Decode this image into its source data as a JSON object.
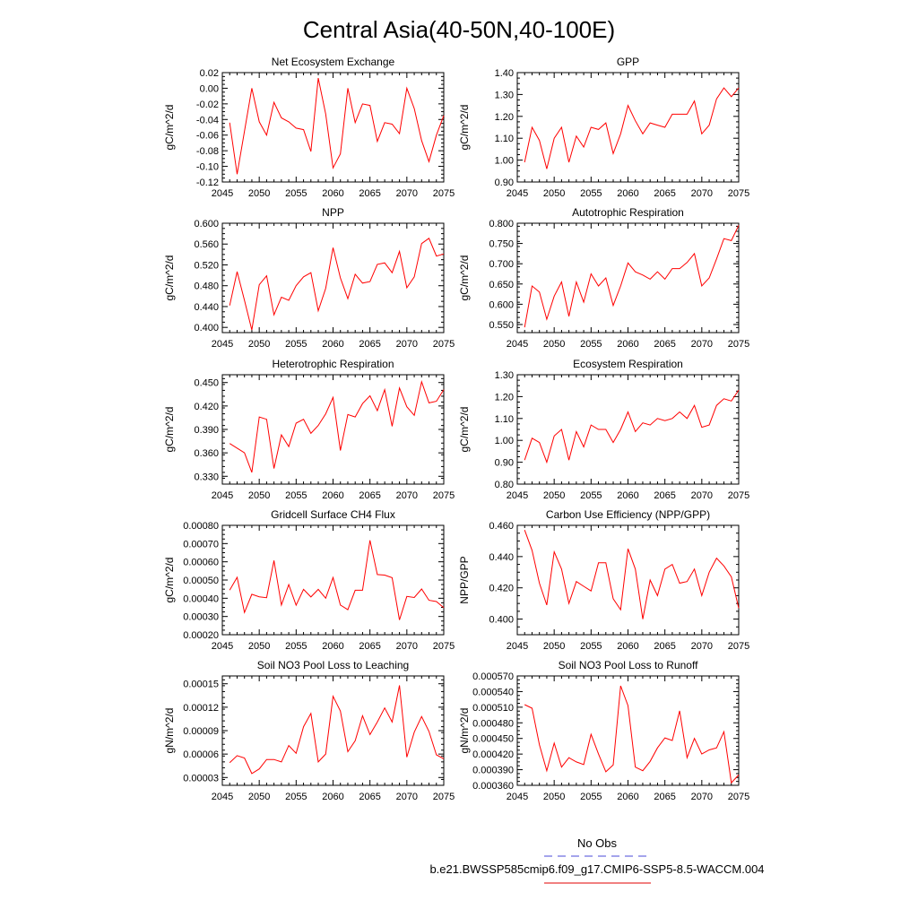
{
  "figure": {
    "title": "Central Asia(40-50N,40-100E)",
    "legend": {
      "obs_label": "No Obs",
      "obs_color": "#4a4ad8",
      "model_label": "b.e21.BWSSP585cmip6.f09_g17.CMIP6-SSP5-8.5-WACCM.004",
      "model_color": "#e00000"
    },
    "line_color": "#ff0000"
  },
  "chart_data": [
    {
      "type": "line",
      "title": "Net Ecosystem Exchange",
      "ylabel": "gC/m^2/d",
      "xlim": [
        2045,
        2075
      ],
      "ylim": [
        -0.12,
        0.02
      ],
      "xticks": [
        "2045",
        "2050",
        "2055",
        "2060",
        "2065",
        "2070",
        "2075"
      ],
      "yticks": [
        "0.02",
        "0.00",
        "-0.02",
        "-0.04",
        "-0.06",
        "-0.08",
        "-0.10",
        "-0.12"
      ],
      "x": [
        2046,
        2047,
        2048,
        2049,
        2050,
        2051,
        2052,
        2053,
        2054,
        2055,
        2056,
        2057,
        2058,
        2059,
        2060,
        2061,
        2062,
        2063,
        2064,
        2065,
        2066,
        2067,
        2068,
        2069,
        2070,
        2071,
        2072,
        2073,
        2074,
        2075
      ],
      "series": [
        {
          "values": [
            -0.044,
            -0.11,
            -0.055,
            0.0,
            -0.043,
            -0.06,
            -0.018,
            -0.038,
            -0.043,
            -0.051,
            -0.053,
            -0.081,
            0.013,
            -0.033,
            -0.102,
            -0.084,
            0.0,
            -0.044,
            -0.02,
            -0.022,
            -0.068,
            -0.044,
            -0.046,
            -0.058,
            0.0,
            -0.026,
            -0.067,
            -0.094,
            -0.06,
            -0.035
          ]
        }
      ]
    },
    {
      "type": "line",
      "title": "GPP",
      "ylabel": "gC/m^2/d",
      "xlim": [
        2045,
        2075
      ],
      "ylim": [
        0.9,
        1.4
      ],
      "xticks": [
        "2045",
        "2050",
        "2055",
        "2060",
        "2065",
        "2070",
        "2075"
      ],
      "yticks": [
        "1.40",
        "1.30",
        "1.20",
        "1.10",
        "1.00",
        "0.90"
      ],
      "x": [
        2046,
        2047,
        2048,
        2049,
        2050,
        2051,
        2052,
        2053,
        2054,
        2055,
        2056,
        2057,
        2058,
        2059,
        2060,
        2061,
        2062,
        2063,
        2064,
        2065,
        2066,
        2067,
        2068,
        2069,
        2070,
        2071,
        2072,
        2073,
        2074,
        2075
      ],
      "series": [
        {
          "values": [
            0.99,
            1.15,
            1.09,
            0.96,
            1.1,
            1.15,
            0.99,
            1.11,
            1.06,
            1.15,
            1.14,
            1.17,
            1.03,
            1.12,
            1.25,
            1.18,
            1.12,
            1.17,
            1.16,
            1.15,
            1.21,
            1.21,
            1.21,
            1.27,
            1.12,
            1.16,
            1.28,
            1.33,
            1.29,
            1.33
          ]
        }
      ]
    },
    {
      "type": "line",
      "title": "NPP",
      "ylabel": "gC/m^2/d",
      "xlim": [
        2045,
        2075
      ],
      "ylim": [
        0.39,
        0.6
      ],
      "xticks": [
        "2045",
        "2050",
        "2055",
        "2060",
        "2065",
        "2070",
        "2075"
      ],
      "yticks": [
        "0.600",
        "0.560",
        "0.520",
        "0.480",
        "0.440",
        "0.400"
      ],
      "x": [
        2046,
        2047,
        2048,
        2049,
        2050,
        2051,
        2052,
        2053,
        2054,
        2055,
        2056,
        2057,
        2058,
        2059,
        2060,
        2061,
        2062,
        2063,
        2064,
        2065,
        2066,
        2067,
        2068,
        2069,
        2070,
        2071,
        2072,
        2073,
        2074,
        2075
      ],
      "series": [
        {
          "values": [
            0.442,
            0.507,
            0.452,
            0.395,
            0.482,
            0.499,
            0.424,
            0.458,
            0.452,
            0.48,
            0.497,
            0.505,
            0.432,
            0.475,
            0.553,
            0.495,
            0.455,
            0.502,
            0.485,
            0.488,
            0.521,
            0.524,
            0.505,
            0.546,
            0.476,
            0.497,
            0.561,
            0.571,
            0.537,
            0.541
          ]
        }
      ]
    },
    {
      "type": "line",
      "title": "Autotrophic Respiration",
      "ylabel": "gC/m^2/d",
      "xlim": [
        2045,
        2075
      ],
      "ylim": [
        0.53,
        0.8
      ],
      "xticks": [
        "2045",
        "2050",
        "2055",
        "2060",
        "2065",
        "2070",
        "2075"
      ],
      "yticks": [
        "0.800",
        "0.750",
        "0.700",
        "0.650",
        "0.600",
        "0.550"
      ],
      "x": [
        2046,
        2047,
        2048,
        2049,
        2050,
        2051,
        2052,
        2053,
        2054,
        2055,
        2056,
        2057,
        2058,
        2059,
        2060,
        2061,
        2062,
        2063,
        2064,
        2065,
        2066,
        2067,
        2068,
        2069,
        2070,
        2071,
        2072,
        2073,
        2074,
        2075
      ],
      "series": [
        {
          "values": [
            0.543,
            0.645,
            0.63,
            0.563,
            0.62,
            0.655,
            0.57,
            0.655,
            0.605,
            0.675,
            0.645,
            0.665,
            0.597,
            0.645,
            0.702,
            0.68,
            0.672,
            0.662,
            0.68,
            0.662,
            0.688,
            0.688,
            0.703,
            0.725,
            0.645,
            0.665,
            0.712,
            0.762,
            0.757,
            0.795
          ]
        }
      ]
    },
    {
      "type": "line",
      "title": "Heterotrophic Respiration",
      "ylabel": "gC/m^2/d",
      "xlim": [
        2045,
        2075
      ],
      "ylim": [
        0.32,
        0.46
      ],
      "xticks": [
        "2045",
        "2050",
        "2055",
        "2060",
        "2065",
        "2070",
        "2075"
      ],
      "yticks": [
        "0.450",
        "0.420",
        "0.390",
        "0.360",
        "0.330"
      ],
      "x": [
        2046,
        2047,
        2048,
        2049,
        2050,
        2051,
        2052,
        2053,
        2054,
        2055,
        2056,
        2057,
        2058,
        2059,
        2060,
        2061,
        2062,
        2063,
        2064,
        2065,
        2066,
        2067,
        2068,
        2069,
        2070,
        2071,
        2072,
        2073,
        2074,
        2075
      ],
      "series": [
        {
          "values": [
            0.372,
            0.366,
            0.36,
            0.335,
            0.406,
            0.403,
            0.34,
            0.383,
            0.368,
            0.398,
            0.403,
            0.385,
            0.395,
            0.41,
            0.431,
            0.363,
            0.409,
            0.406,
            0.423,
            0.433,
            0.414,
            0.441,
            0.394,
            0.443,
            0.419,
            0.408,
            0.451,
            0.424,
            0.426,
            0.441
          ]
        }
      ]
    },
    {
      "type": "line",
      "title": "Ecosystem Respiration",
      "ylabel": "gC/m^2/d",
      "xlim": [
        2045,
        2075
      ],
      "ylim": [
        0.8,
        1.3
      ],
      "xticks": [
        "2045",
        "2050",
        "2055",
        "2060",
        "2065",
        "2070",
        "2075"
      ],
      "yticks": [
        "1.30",
        "1.20",
        "1.10",
        "1.00",
        "0.90",
        "0.80"
      ],
      "x": [
        2046,
        2047,
        2048,
        2049,
        2050,
        2051,
        2052,
        2053,
        2054,
        2055,
        2056,
        2057,
        2058,
        2059,
        2060,
        2061,
        2062,
        2063,
        2064,
        2065,
        2066,
        2067,
        2068,
        2069,
        2070,
        2071,
        2072,
        2073,
        2074,
        2075
      ],
      "series": [
        {
          "values": [
            0.91,
            1.01,
            0.99,
            0.9,
            1.02,
            1.05,
            0.91,
            1.04,
            0.97,
            1.07,
            1.05,
            1.05,
            0.99,
            1.05,
            1.13,
            1.04,
            1.08,
            1.07,
            1.1,
            1.09,
            1.1,
            1.13,
            1.1,
            1.16,
            1.06,
            1.07,
            1.16,
            1.19,
            1.18,
            1.23
          ]
        }
      ]
    },
    {
      "type": "line",
      "title": "Gridcell Surface CH4 Flux",
      "ylabel": "gC/m^2/d",
      "xlim": [
        2045,
        2075
      ],
      "ylim": [
        0.0002,
        0.0008
      ],
      "xticks": [
        "2045",
        "2050",
        "2055",
        "2060",
        "2065",
        "2070",
        "2075"
      ],
      "yticks": [
        "0.00080",
        "0.00070",
        "0.00060",
        "0.00050",
        "0.00040",
        "0.00030",
        "0.00020"
      ],
      "x": [
        2046,
        2047,
        2048,
        2049,
        2050,
        2051,
        2052,
        2053,
        2054,
        2055,
        2056,
        2057,
        2058,
        2059,
        2060,
        2061,
        2062,
        2063,
        2064,
        2065,
        2066,
        2067,
        2068,
        2069,
        2070,
        2071,
        2072,
        2073,
        2074,
        2075
      ],
      "series": [
        {
          "values": [
            0.000445,
            0.000515,
            0.000322,
            0.000422,
            0.000408,
            0.000403,
            0.000607,
            0.000363,
            0.000475,
            0.000362,
            0.000449,
            0.000407,
            0.000449,
            0.0004,
            0.000514,
            0.000363,
            0.000337,
            0.000444,
            0.000444,
            0.000718,
            0.00053,
            0.000527,
            0.000513,
            0.000281,
            0.00041,
            0.000404,
            0.000451,
            0.000389,
            0.000382,
            0.000348
          ]
        }
      ]
    },
    {
      "type": "line",
      "title": "Carbon Use Efficiency (NPP/GPP)",
      "ylabel": "NPP/GPP",
      "xlim": [
        2045,
        2075
      ],
      "ylim": [
        0.39,
        0.46
      ],
      "xticks": [
        "2045",
        "2050",
        "2055",
        "2060",
        "2065",
        "2070",
        "2075"
      ],
      "yticks": [
        "0.460",
        "0.440",
        "0.420",
        "0.400"
      ],
      "x": [
        2046,
        2047,
        2048,
        2049,
        2050,
        2051,
        2052,
        2053,
        2054,
        2055,
        2056,
        2057,
        2058,
        2059,
        2060,
        2061,
        2062,
        2063,
        2064,
        2065,
        2066,
        2067,
        2068,
        2069,
        2070,
        2071,
        2072,
        2073,
        2074,
        2075
      ],
      "series": [
        {
          "values": [
            0.457,
            0.444,
            0.423,
            0.409,
            0.443,
            0.432,
            0.41,
            0.424,
            0.421,
            0.418,
            0.436,
            0.436,
            0.413,
            0.406,
            0.445,
            0.432,
            0.4,
            0.425,
            0.415,
            0.432,
            0.435,
            0.423,
            0.424,
            0.432,
            0.415,
            0.43,
            0.439,
            0.434,
            0.427,
            0.407
          ]
        }
      ]
    },
    {
      "type": "line",
      "title": "Soil NO3 Pool Loss to Leaching",
      "ylabel": "gN/m^2/d",
      "xlim": [
        2045,
        2075
      ],
      "ylim": [
        2e-05,
        0.00016
      ],
      "xticks": [
        "2045",
        "2050",
        "2055",
        "2060",
        "2065",
        "2070",
        "2075"
      ],
      "yticks": [
        "0.00015",
        "0.00012",
        "0.00009",
        "0.00006",
        "0.00003"
      ],
      "x": [
        2046,
        2047,
        2048,
        2049,
        2050,
        2051,
        2052,
        2053,
        2054,
        2055,
        2056,
        2057,
        2058,
        2059,
        2060,
        2061,
        2062,
        2063,
        2064,
        2065,
        2066,
        2067,
        2068,
        2069,
        2070,
        2071,
        2072,
        2073,
        2074,
        2075
      ],
      "series": [
        {
          "values": [
            4.9e-05,
            5.8e-05,
            5.5e-05,
            3.5e-05,
            4.1e-05,
            5.3e-05,
            5.3e-05,
            5e-05,
            7.1e-05,
            6.1e-05,
            9.5e-05,
            0.000112,
            5e-05,
            6e-05,
            0.000134,
            0.000115,
            6.3e-05,
            7.7e-05,
            0.000109,
            8.5e-05,
            0.000101,
            0.000119,
            0.000101,
            0.000148,
            5.6e-05,
            8.8e-05,
            0.000108,
            8.9e-05,
            5.9e-05,
            5.4e-05
          ]
        }
      ]
    },
    {
      "type": "line",
      "title": "Soil NO3 Pool Loss to Runoff",
      "ylabel": "gN/m^2/d",
      "xlim": [
        2045,
        2075
      ],
      "ylim": [
        0.00036,
        0.00057
      ],
      "xticks": [
        "2045",
        "2050",
        "2055",
        "2060",
        "2065",
        "2070",
        "2075"
      ],
      "yticks": [
        "0.000570",
        "0.000540",
        "0.000510",
        "0.000480",
        "0.000450",
        "0.000420",
        "0.000390",
        "0.000360"
      ],
      "x": [
        2046,
        2047,
        2048,
        2049,
        2050,
        2051,
        2052,
        2053,
        2054,
        2055,
        2056,
        2057,
        2058,
        2059,
        2060,
        2061,
        2062,
        2063,
        2064,
        2065,
        2066,
        2067,
        2068,
        2069,
        2070,
        2071,
        2072,
        2073,
        2074,
        2075
      ],
      "series": [
        {
          "values": [
            0.000515,
            0.000508,
            0.000438,
            0.000388,
            0.000441,
            0.000395,
            0.000413,
            0.000405,
            0.0004,
            0.000458,
            0.00042,
            0.000386,
            0.000399,
            0.000551,
            0.000513,
            0.000395,
            0.000388,
            0.000406,
            0.000432,
            0.000451,
            0.000446,
            0.000503,
            0.000413,
            0.00045,
            0.00042,
            0.000428,
            0.000432,
            0.000463,
            0.000365,
            0.00038
          ]
        }
      ]
    }
  ]
}
